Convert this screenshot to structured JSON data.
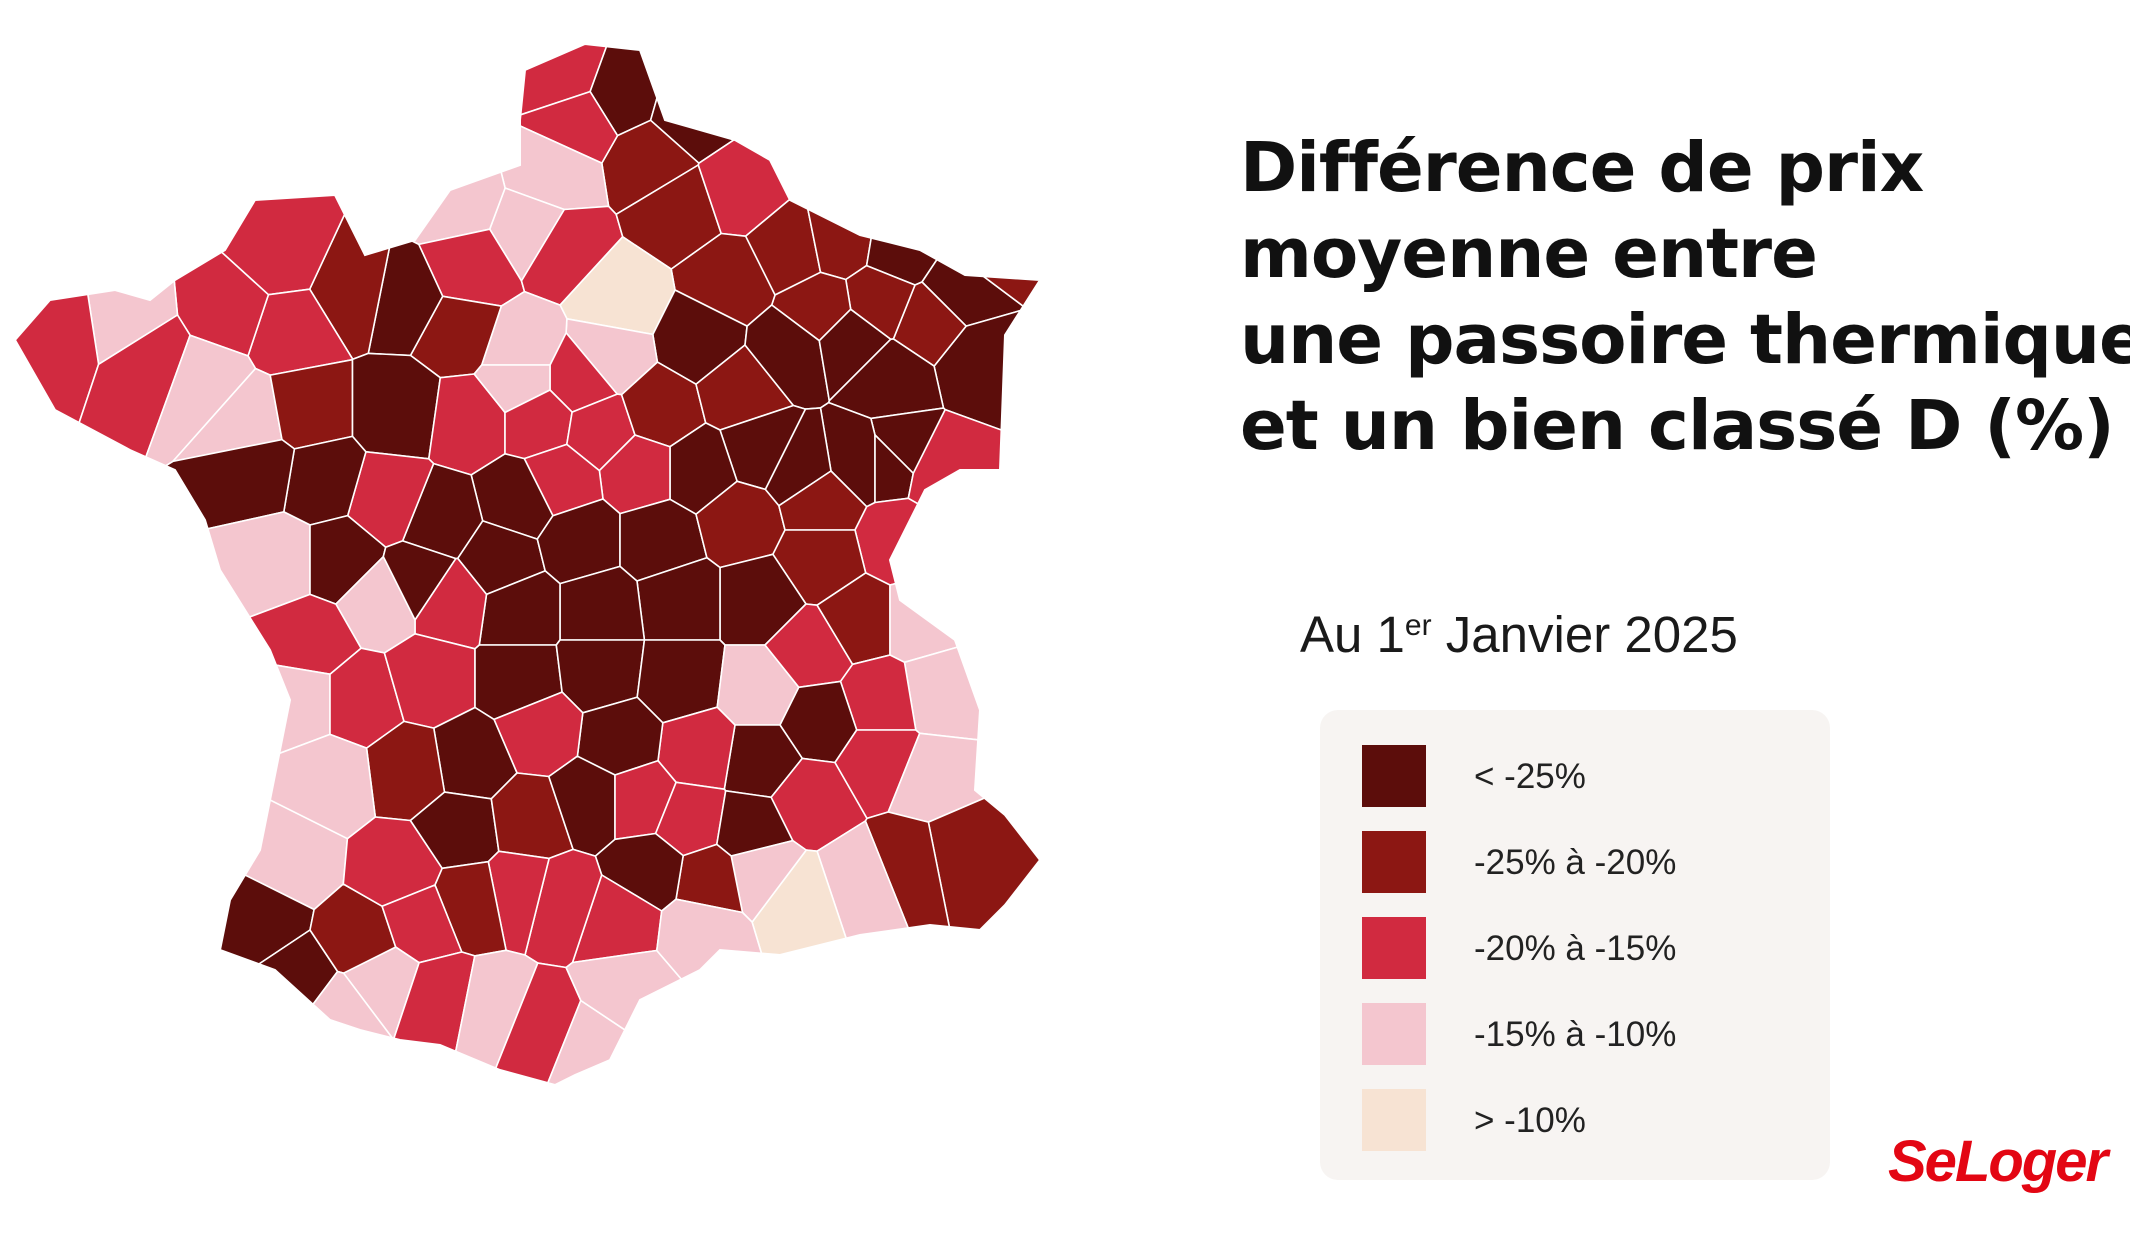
{
  "title": {
    "lines": [
      "Différence de prix",
      "moyenne entre",
      "une passoire thermique",
      "et un bien classé D (%)"
    ],
    "accent_color": "#e30613"
  },
  "subtitle": {
    "prefix": "Au 1",
    "sup": "er",
    "suffix": " Janvier 2025"
  },
  "legend": {
    "items": [
      {
        "label": "< -25%",
        "color": "#5c0d0b"
      },
      {
        "label": "-25% à -20%",
        "color": "#8c1713"
      },
      {
        "label": "-20% à -15%",
        "color": "#d12a40"
      },
      {
        "label": "-15% à -10%",
        "color": "#f4c6cf"
      },
      {
        "label": "> -10%",
        "color": "#f7e3d3"
      }
    ]
  },
  "logo": {
    "text": "SeLoger",
    "color": "#e30613"
  },
  "map": {
    "class_colors": [
      "#5c0d0b",
      "#8c1713",
      "#d12a40",
      "#f4c6cf",
      "#f7e3d3"
    ]
  }
}
